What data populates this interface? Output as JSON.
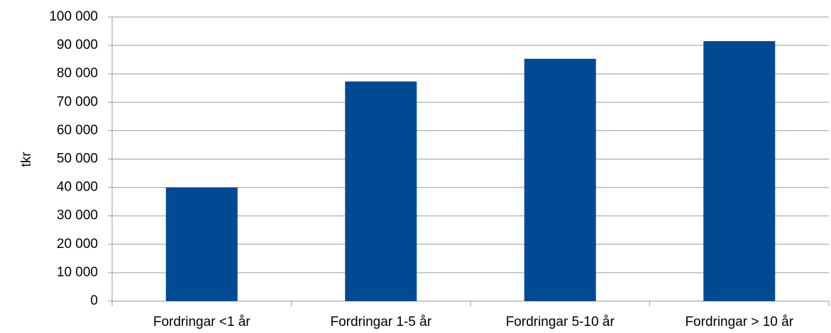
{
  "chart_data": {
    "type": "bar",
    "y_label": "tkr",
    "categories": [
      "Fordringar <1 år",
      "Fordringar 1-5 år",
      "Fordringar 5-10 år",
      "Fordringar > 10 år"
    ],
    "values": [
      40000,
      77300,
      85300,
      91500
    ],
    "color": "#004a93",
    "ylim": [
      0,
      100000
    ],
    "yticks": [
      0,
      {
        "value": 10000,
        "label": "10 000"
      },
      {
        "value": 20000,
        "label": "20 000"
      },
      {
        "value": 30000,
        "label": "30 000"
      },
      {
        "value": 40000,
        "label": "40 000"
      },
      {
        "value": 50000,
        "label": "50 000"
      },
      {
        "value": 60000,
        "label": "60 000"
      },
      {
        "value": 70000,
        "label": "70 000"
      },
      {
        "value": 80000,
        "label": "80 000"
      },
      {
        "value": 90000,
        "label": "90 000"
      },
      {
        "value": 100000,
        "label": "100 000"
      }
    ],
    "grid": true
  }
}
